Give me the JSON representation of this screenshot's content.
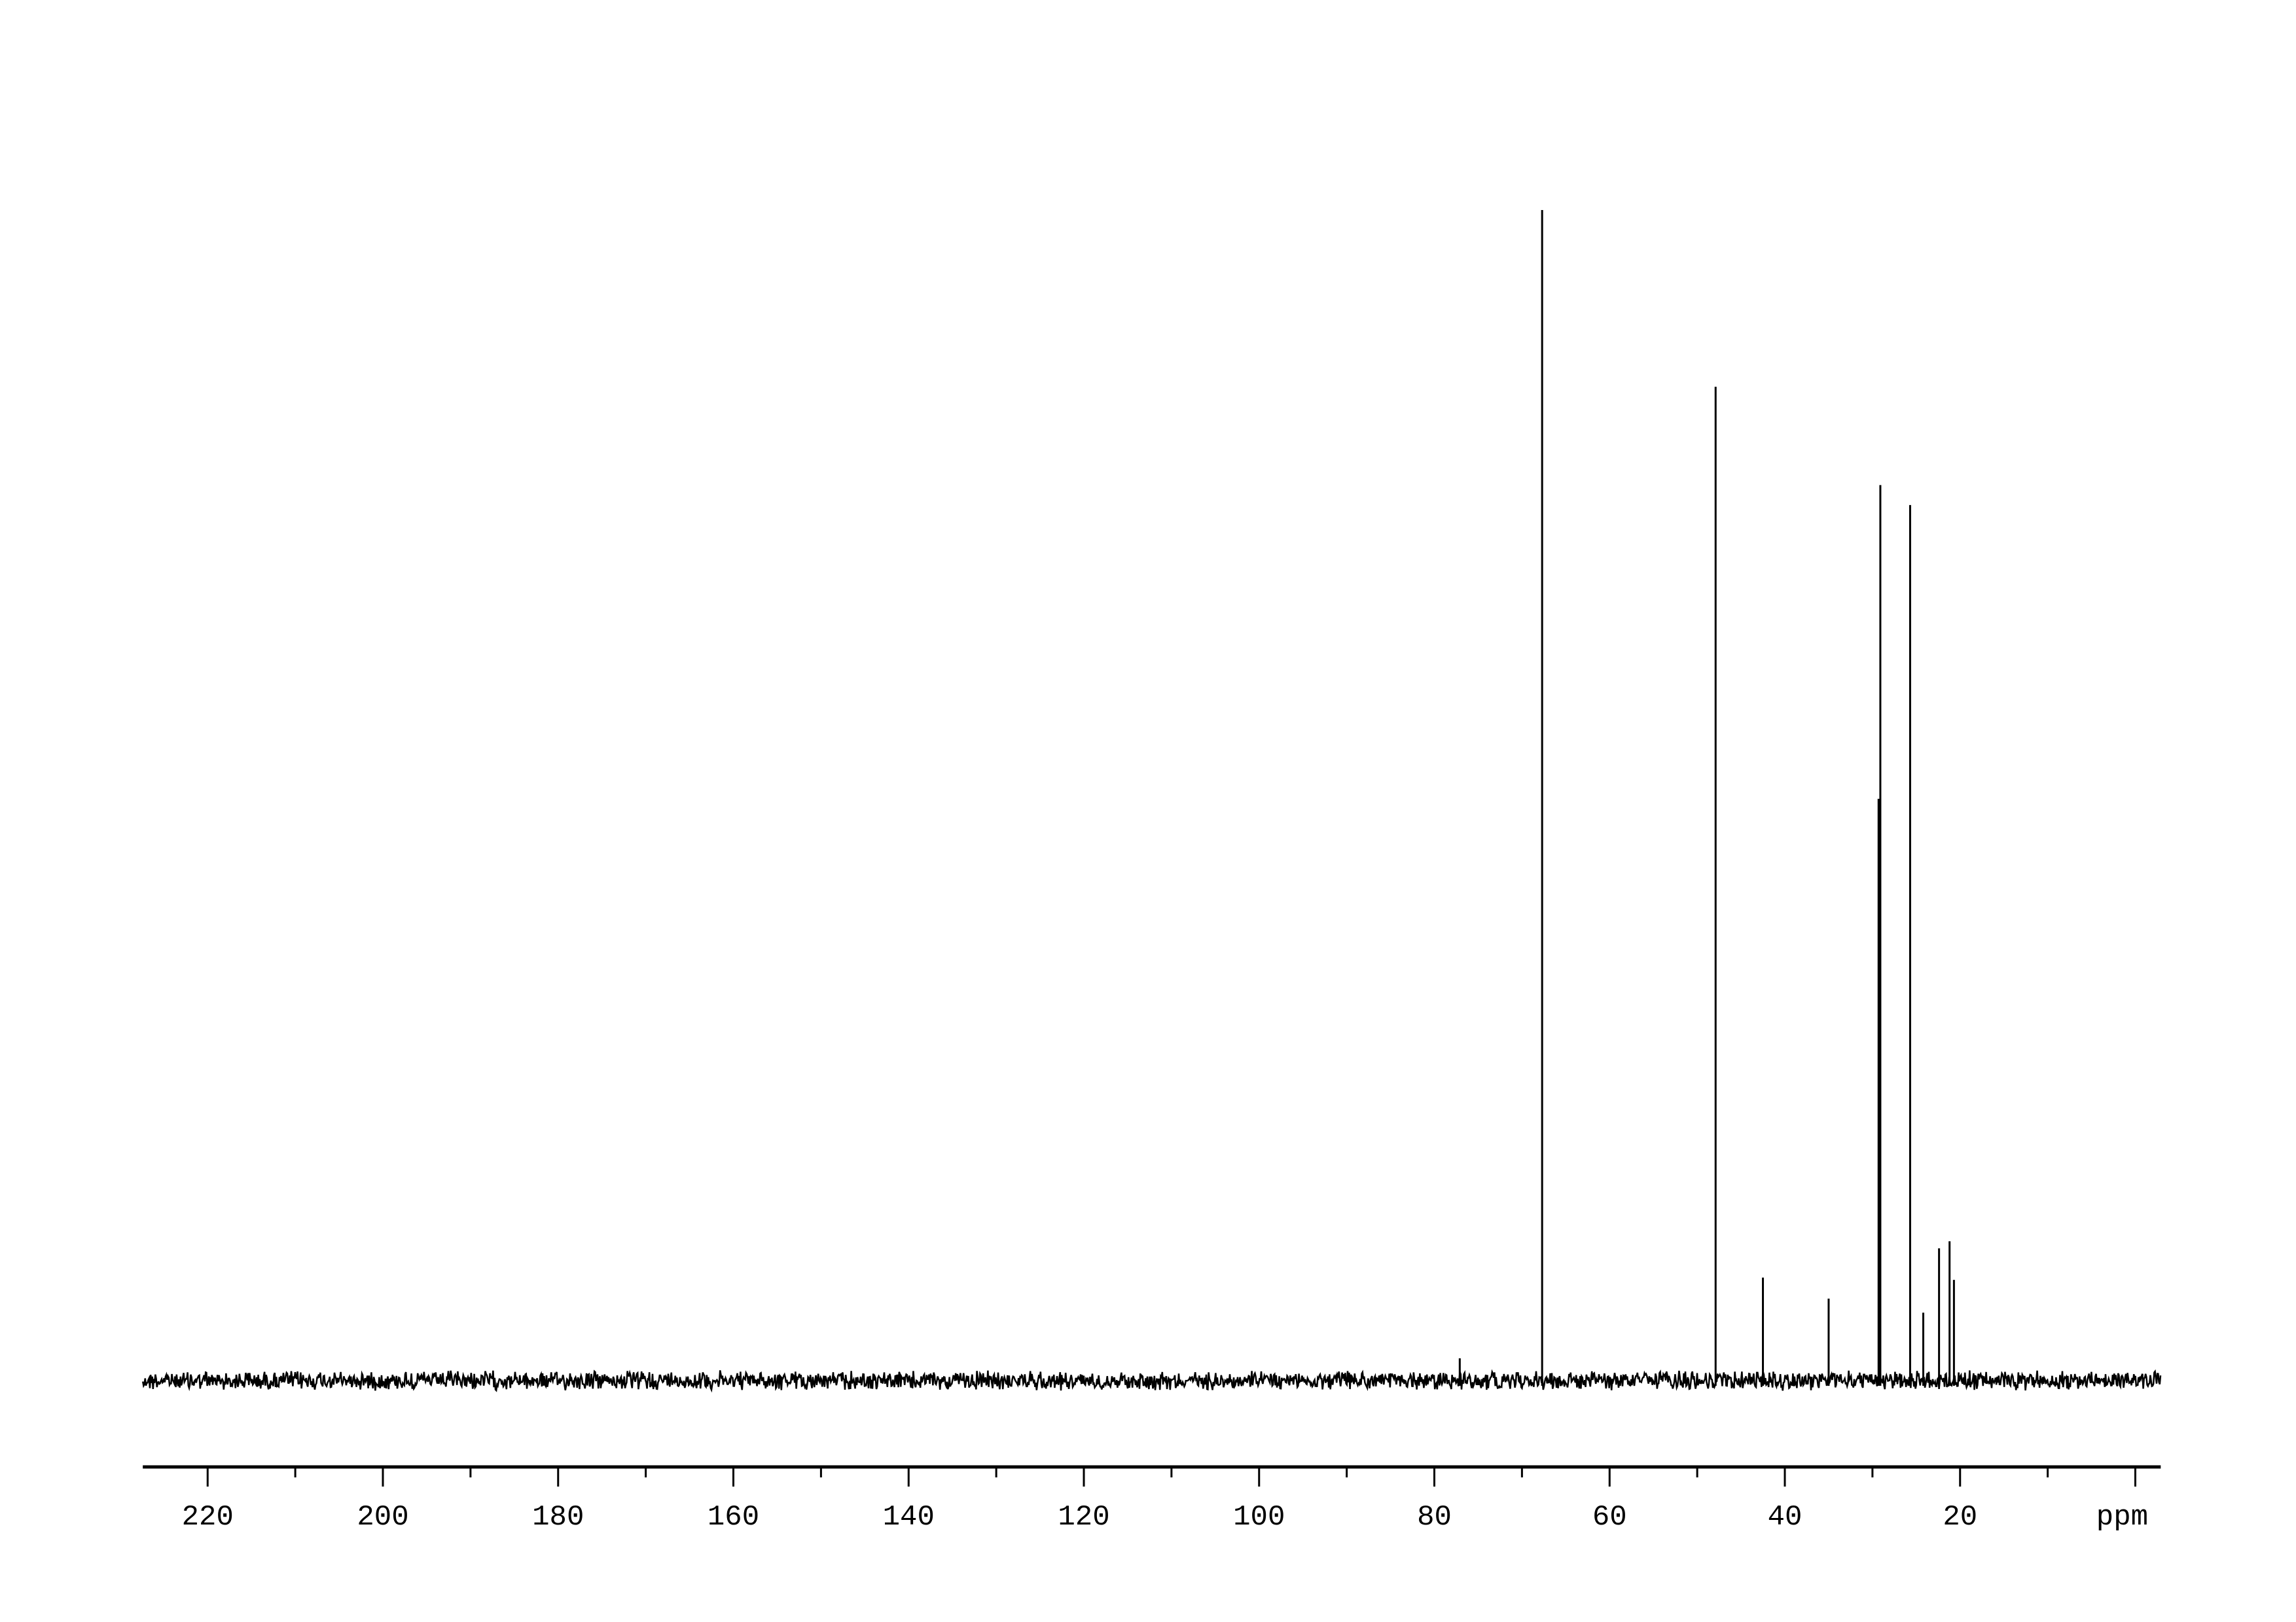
{
  "chart_data": {
    "type": "line",
    "title": "",
    "xlabel": "ppm",
    "ylabel": "",
    "x_reversed": true,
    "xlim": [
      227.4,
      -2.9
    ],
    "x_major_ticks": [
      220,
      200,
      180,
      160,
      140,
      120,
      100,
      80,
      60,
      40,
      20,
      0
    ],
    "x_tick_labels": [
      "220",
      "200",
      "180",
      "160",
      "140",
      "120",
      "100",
      "80",
      "60",
      "40",
      "20"
    ],
    "x_minor_ticks": [
      210,
      190,
      170,
      150,
      130,
      110,
      90,
      70,
      50,
      30,
      10
    ],
    "grid": false,
    "line_color": "#000000",
    "intensity_scale": "relative, tallest peak = 100",
    "peaks": [
      {
        "ppm": 77.1,
        "intensity": 1.9
      },
      {
        "ppm": 67.7,
        "intensity": 100
      },
      {
        "ppm": 47.9,
        "intensity": 84.9
      },
      {
        "ppm": 42.5,
        "intensity": 8.8
      },
      {
        "ppm": 35.0,
        "intensity": 7.0
      },
      {
        "ppm": 29.3,
        "intensity": 49.7
      },
      {
        "ppm": 29.1,
        "intensity": 76.5
      },
      {
        "ppm": 25.7,
        "intensity": 74.8
      },
      {
        "ppm": 24.2,
        "intensity": 5.8
      },
      {
        "ppm": 22.4,
        "intensity": 11.3
      },
      {
        "ppm": 21.2,
        "intensity": 11.9
      },
      {
        "ppm": 20.7,
        "intensity": 8.6
      }
    ],
    "noise_level": 1.0
  }
}
